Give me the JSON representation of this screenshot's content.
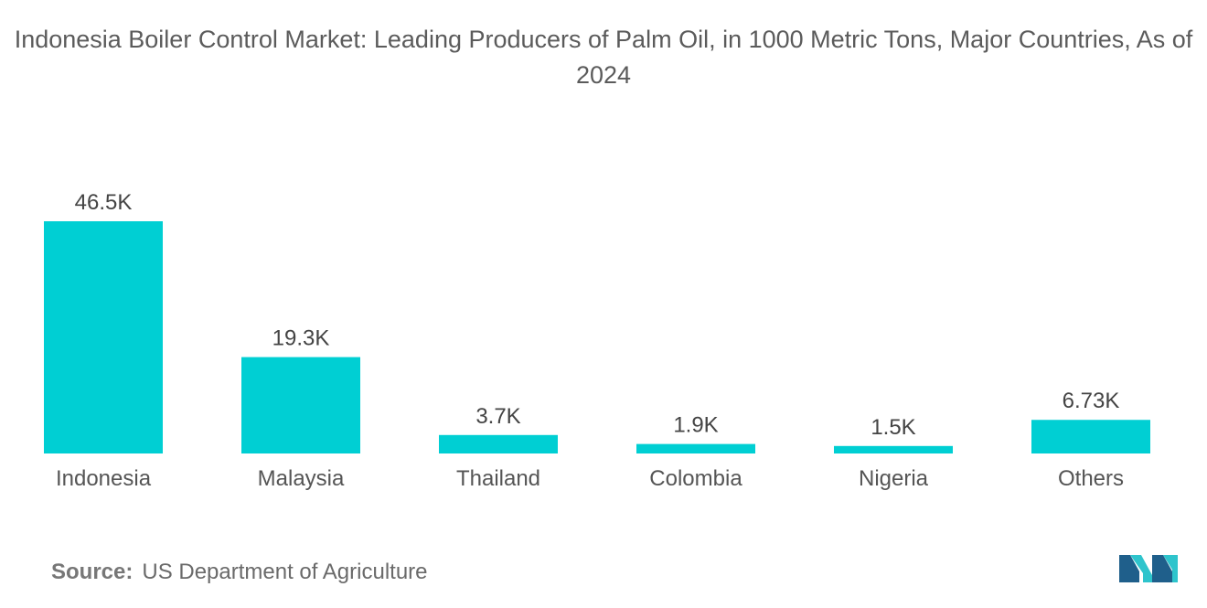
{
  "title": "Indonesia Boiler Control Market: Leading Producers of Palm Oil, in 1000 Metric Tons, Major Countries, As of 2024",
  "source": {
    "label": "Source:",
    "text": "US Department of Agriculture"
  },
  "logo_icon": "mordor-intelligence-logo-icon",
  "colors": {
    "bar": "#00cfd3",
    "logo_dark": "#1f5f8b",
    "logo_light": "#2ec4cc"
  },
  "chart_data": {
    "type": "bar",
    "title": "Indonesia Boiler Control Market: Leading Producers of Palm Oil, in 1000 Metric Tons, Major Countries, As of 2024",
    "categories": [
      "Indonesia",
      "Malaysia",
      "Thailand",
      "Colombia",
      "Nigeria",
      "Others"
    ],
    "values": [
      46.5,
      19.3,
      3.7,
      1.9,
      1.5,
      6.73
    ],
    "value_labels": [
      "46.5K",
      "19.3K",
      "3.7K",
      "1.9K",
      "1.5K",
      "6.73K"
    ],
    "xlabel": "",
    "ylabel": "",
    "ylim": [
      0,
      46.5
    ],
    "grid": false,
    "legend": "none"
  }
}
